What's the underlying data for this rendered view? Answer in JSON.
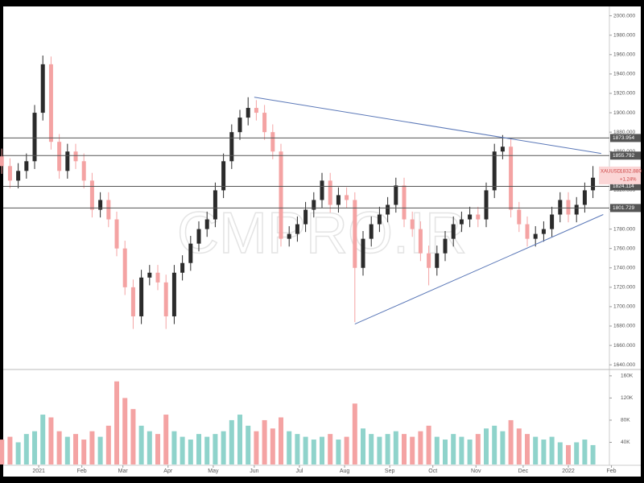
{
  "chart_data": {
    "type": "candlestick",
    "symbol": "XAUUSD",
    "last_price": {
      "value": 1832.88,
      "label": "1832.880"
    },
    "change": "+1.24%",
    "watermark": "CMPRO.IR",
    "up_color": "#2b2b2b",
    "down_color": "#f4a3a3",
    "volume_up_color": "#8fd3cb",
    "volume_down_color": "#f4a3a3",
    "x": [
      -18,
      -14,
      -10,
      -6,
      -2,
      2,
      6,
      10,
      14,
      18,
      22,
      26,
      30,
      34,
      38,
      42,
      46,
      50,
      54,
      58,
      62,
      66,
      70,
      74,
      78,
      82,
      86,
      90,
      94,
      98,
      102,
      106,
      110,
      114,
      118,
      122,
      126,
      130,
      134,
      138,
      142,
      146,
      150,
      154,
      158,
      162,
      166,
      170,
      174,
      178,
      182,
      186,
      190,
      194,
      198,
      202,
      206,
      210,
      214,
      218,
      222,
      226,
      230,
      234,
      238,
      242,
      246,
      250,
      254,
      258,
      262,
      266,
      270
    ],
    "open": [
      1855,
      1845,
      1830,
      1840,
      1850,
      1900,
      1950,
      1870,
      1840,
      1860,
      1850,
      1830,
      1800,
      1810,
      1790,
      1760,
      1720,
      1690,
      1730,
      1735,
      1725,
      1690,
      1735,
      1745,
      1765,
      1780,
      1790,
      1820,
      1850,
      1880,
      1895,
      1905,
      1900,
      1880,
      1860,
      1770,
      1775,
      1785,
      1800,
      1810,
      1830,
      1805,
      1815,
      1810,
      1740,
      1770,
      1785,
      1795,
      1805,
      1825,
      1790,
      1780,
      1755,
      1740,
      1755,
      1770,
      1785,
      1790,
      1795,
      1790,
      1820,
      1860,
      1865,
      1800,
      1785,
      1770,
      1775,
      1780,
      1795,
      1810,
      1795,
      1805,
      1820
    ],
    "high": [
      1863,
      1853,
      1848,
      1858,
      1908,
      1959,
      1958,
      1878,
      1868,
      1868,
      1858,
      1838,
      1818,
      1818,
      1798,
      1768,
      1728,
      1738,
      1743,
      1743,
      1733,
      1743,
      1753,
      1773,
      1788,
      1798,
      1828,
      1858,
      1888,
      1903,
      1916,
      1913,
      1908,
      1888,
      1868,
      1783,
      1793,
      1808,
      1818,
      1838,
      1838,
      1823,
      1823,
      1818,
      1778,
      1793,
      1803,
      1813,
      1833,
      1833,
      1798,
      1788,
      1763,
      1763,
      1778,
      1793,
      1798,
      1803,
      1803,
      1828,
      1868,
      1877,
      1873,
      1808,
      1793,
      1783,
      1788,
      1803,
      1818,
      1818,
      1813,
      1828,
      1845
    ],
    "low": [
      1837,
      1822,
      1822,
      1832,
      1842,
      1892,
      1862,
      1832,
      1832,
      1842,
      1822,
      1792,
      1792,
      1782,
      1752,
      1712,
      1677,
      1682,
      1722,
      1717,
      1677,
      1682,
      1727,
      1737,
      1757,
      1772,
      1782,
      1812,
      1842,
      1872,
      1887,
      1892,
      1872,
      1852,
      1762,
      1762,
      1767,
      1777,
      1792,
      1802,
      1797,
      1797,
      1802,
      1684,
      1732,
      1762,
      1777,
      1787,
      1797,
      1782,
      1772,
      1747,
      1722,
      1732,
      1747,
      1762,
      1777,
      1782,
      1782,
      1782,
      1812,
      1852,
      1792,
      1777,
      1762,
      1762,
      1767,
      1772,
      1787,
      1787,
      1787,
      1797,
      1812
    ],
    "close": [
      1845,
      1830,
      1840,
      1850,
      1900,
      1950,
      1870,
      1840,
      1860,
      1850,
      1830,
      1800,
      1810,
      1790,
      1760,
      1720,
      1690,
      1730,
      1735,
      1725,
      1690,
      1735,
      1745,
      1765,
      1780,
      1790,
      1820,
      1850,
      1880,
      1895,
      1905,
      1900,
      1880,
      1860,
      1770,
      1775,
      1785,
      1800,
      1810,
      1830,
      1805,
      1815,
      1810,
      1740,
      1770,
      1785,
      1795,
      1805,
      1825,
      1790,
      1780,
      1755,
      1740,
      1755,
      1770,
      1785,
      1790,
      1795,
      1790,
      1820,
      1860,
      1865,
      1800,
      1785,
      1770,
      1775,
      1780,
      1795,
      1810,
      1795,
      1805,
      1820,
      1833
    ],
    "volume": [
      45000,
      50000,
      40000,
      55000,
      60000,
      90000,
      85000,
      60000,
      50000,
      55000,
      45000,
      60000,
      50000,
      70000,
      150000,
      120000,
      100000,
      70000,
      60000,
      55000,
      90000,
      60000,
      50000,
      45000,
      55000,
      50000,
      55000,
      60000,
      80000,
      90000,
      70000,
      60000,
      80000,
      65000,
      85000,
      60000,
      55000,
      50000,
      45000,
      50000,
      55000,
      45000,
      50000,
      110000,
      65000,
      55000,
      50000,
      55000,
      60000,
      55000,
      50000,
      60000,
      70000,
      50000,
      45000,
      55000,
      50000,
      45000,
      55000,
      65000,
      70000,
      60000,
      80000,
      65000,
      55000,
      50000,
      45000,
      50000,
      40000,
      35000,
      40000,
      45000,
      35000
    ],
    "xlim": [
      -17.3,
      278
    ],
    "ylim": [
      1636,
      2008
    ],
    "volume_ylim": [
      0,
      170000
    ],
    "xticks": [
      {
        "value": 0,
        "label": "2021"
      },
      {
        "value": 21,
        "label": "Feb"
      },
      {
        "value": 41,
        "label": "Mar"
      },
      {
        "value": 63,
        "label": "Apr"
      },
      {
        "value": 85,
        "label": "May"
      },
      {
        "value": 105,
        "label": "Jun"
      },
      {
        "value": 127,
        "label": "Jul"
      },
      {
        "value": 149,
        "label": "Aug"
      },
      {
        "value": 171,
        "label": "Sep"
      },
      {
        "value": 192,
        "label": "Oct"
      },
      {
        "value": 213,
        "label": "Nov"
      },
      {
        "value": 236,
        "label": "Dec"
      },
      {
        "value": 258,
        "label": "2022"
      },
      {
        "value": 279,
        "label": "Feb"
      }
    ],
    "yticks": [
      {
        "value": 1640,
        "label": "1640.000"
      },
      {
        "value": 1660,
        "label": "1660.000"
      },
      {
        "value": 1680,
        "label": "1680.000"
      },
      {
        "value": 1700,
        "label": "1700.000"
      },
      {
        "value": 1720,
        "label": "1720.000"
      },
      {
        "value": 1740,
        "label": "1740.000"
      },
      {
        "value": 1760,
        "label": "1760.000"
      },
      {
        "value": 1780,
        "label": "1780.000"
      },
      {
        "value": 1800,
        "label": "1800.000"
      },
      {
        "value": 1820,
        "label": "1820.000"
      },
      {
        "value": 1840,
        "label": "1840.000"
      },
      {
        "value": 1860,
        "label": "1860.000"
      },
      {
        "value": 1880,
        "label": "1880.000"
      },
      {
        "value": 1900,
        "label": "1900.000"
      },
      {
        "value": 1920,
        "label": "1920.000"
      },
      {
        "value": 1940,
        "label": "1940.000"
      },
      {
        "value": 1960,
        "label": "1960.000"
      },
      {
        "value": 1980,
        "label": "1980.000"
      },
      {
        "value": 2000,
        "label": "2000.000"
      }
    ],
    "volume_yticks": [
      {
        "value": 40000,
        "label": "40K"
      },
      {
        "value": 80000,
        "label": "80K"
      },
      {
        "value": 120000,
        "label": "120K"
      },
      {
        "value": 160000,
        "label": "160K"
      }
    ],
    "levels": [
      1873.954,
      1855.792,
      1824.114,
      1801.729
    ],
    "level_color": "#555555",
    "trendlines": [
      {
        "x": [
          105,
          274
        ],
        "y": [
          1916,
          1858
        ]
      },
      {
        "x": [
          154,
          275
        ],
        "y": [
          1682,
          1795
        ]
      }
    ],
    "trend_color": "#5b78b8"
  }
}
